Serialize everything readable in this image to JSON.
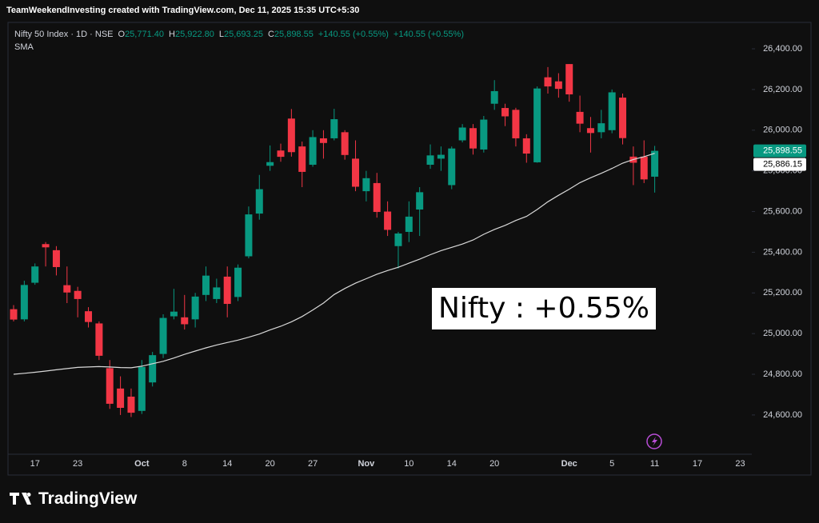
{
  "header": "TeamWeekendInvesting created with TradingView.com, Dec 11, 2025 15:35 UTC+5:30",
  "brand": "TradingView",
  "chart_data": {
    "type": "candlestick",
    "legend": {
      "symbol": "Nifty 50 Index · 1D · NSE",
      "ohlc": [
        {
          "key": "O",
          "value": "25,771.40"
        },
        {
          "key": "H",
          "value": "25,922.80"
        },
        {
          "key": "L",
          "value": "25,693.25"
        },
        {
          "key": "C",
          "value": "25,898.55"
        }
      ],
      "change": [
        "+140.55 (+0.55%)",
        "+140.55 (+0.55%)"
      ],
      "indicator": "SMA"
    },
    "annotation": "Nifty : +0.55%",
    "up_color": "#089981",
    "down_color": "#f23645",
    "sma_color": "#d9d9d9",
    "categories": [
      null,
      null,
      "17",
      null,
      null,
      null,
      "23",
      null,
      null,
      null,
      null,
      null,
      "Oct",
      null,
      null,
      null,
      "8",
      null,
      null,
      null,
      "14",
      null,
      null,
      null,
      "20",
      null,
      null,
      null,
      "27",
      null,
      null,
      null,
      null,
      "Nov",
      null,
      null,
      null,
      "10",
      null,
      null,
      null,
      "14",
      null,
      null,
      null,
      "20",
      null,
      null,
      null,
      null,
      null,
      null,
      "Dec",
      null,
      null,
      null,
      "5",
      null,
      null,
      null,
      "11",
      null,
      null,
      null,
      "17",
      null,
      null,
      null,
      "23"
    ],
    "open": [
      25120,
      25070,
      25250,
      25440,
      25410,
      25238,
      25210,
      25110,
      25050,
      24830,
      24730,
      24690,
      24620,
      24760,
      24900,
      25085,
      25080,
      25070,
      25190,
      25170,
      25280,
      25180,
      25380,
      25590,
      25825,
      25900,
      26057,
      25920,
      25830,
      25960,
      25960,
      25990,
      25860,
      25700,
      25740,
      25600,
      25430,
      25500,
      25610,
      25830,
      25860,
      25730,
      25950,
      26010,
      25905,
      26130,
      26109,
      26100,
      25960,
      25842,
      26260,
      26240,
      26325,
      26090,
      26010,
      25990,
      26000,
      26160,
      25870,
      25870,
      25771.4,
      null,
      null,
      null,
      null,
      null,
      null,
      null,
      null
    ],
    "high": [
      25140,
      25260,
      25345,
      25450,
      25430,
      25330,
      25230,
      25130,
      25060,
      24870,
      24790,
      24730,
      24870,
      24910,
      25095,
      25220,
      25190,
      25200,
      25330,
      25270,
      25330,
      25340,
      25625,
      25780,
      25925,
      25934,
      26104,
      25944,
      26000,
      26000,
      26105,
      26000,
      25950,
      25800,
      25790,
      25650,
      25500,
      25650,
      25720,
      25930,
      25920,
      25920,
      26030,
      26030,
      26070,
      26246,
      26130,
      26110,
      25980,
      26215,
      26310,
      26280,
      26325,
      26170,
      26065,
      26100,
      26200,
      26180,
      25920,
      25950,
      25922.8,
      null,
      null,
      null,
      null,
      null,
      null,
      null,
      null
    ],
    "low": [
      25060,
      25060,
      25240,
      25330,
      25286,
      25150,
      25080,
      25030,
      24870,
      24630,
      24600,
      24590,
      24605,
      24740,
      24880,
      25070,
      25020,
      25030,
      25160,
      25150,
      25080,
      25160,
      25370,
      25560,
      25800,
      25845,
      25870,
      25720,
      25820,
      25860,
      25950,
      25855,
      25700,
      25650,
      25570,
      25480,
      25320,
      25450,
      25480,
      25810,
      25800,
      25710,
      25940,
      25880,
      25890,
      26100,
      26020,
      25920,
      25840,
      25840,
      26180,
      26160,
      26140,
      25990,
      25890,
      25960,
      25985,
      25930,
      25730,
      25740,
      25693.25,
      null,
      null,
      null,
      null,
      null,
      null,
      null,
      null
    ],
    "close": [
      25069,
      25239,
      25330,
      25424,
      25327,
      25202,
      25170,
      25057,
      24891,
      24655,
      24635,
      24611,
      24836,
      24894,
      25077,
      25108,
      25046,
      25182,
      25285,
      25227,
      25146,
      25324,
      25586,
      25710,
      25843,
      25869,
      25892,
      25795,
      25966,
      25937,
      26054,
      25878,
      25722,
      25764,
      25598,
      25510,
      25492,
      25575,
      25695,
      25876,
      25879,
      25910,
      26013,
      25910,
      26052,
      26192,
      26068,
      25960,
      25885,
      26205,
      26215,
      26203,
      26176,
      26032,
      25986,
      26034,
      26186,
      25961,
      25840,
      25758,
      25898.55,
      null,
      null,
      null,
      null,
      null,
      null,
      null,
      null
    ],
    "sma": [
      24800,
      24805,
      24810,
      24816,
      24822,
      24828,
      24834,
      24836,
      24838,
      24836,
      24833,
      24832,
      24840,
      24852,
      24864,
      24880,
      24898,
      24914,
      24930,
      24944,
      24956,
      24968,
      24982,
      24998,
      25018,
      25036,
      25058,
      25084,
      25116,
      25150,
      25192,
      25222,
      25248,
      25270,
      25292,
      25310,
      25326,
      25346,
      25366,
      25388,
      25408,
      25424,
      25440,
      25460,
      25488,
      25512,
      25532,
      25556,
      25576,
      25610,
      25648,
      25680,
      25710,
      25742,
      25766,
      25788,
      25812,
      25838,
      25856,
      25870,
      25886.15,
      null,
      null,
      null,
      null,
      null,
      null,
      null,
      null
    ],
    "price_tags": {
      "close": "25,898.55",
      "sma": "25,886.15"
    },
    "ylim": [
      24407,
      26522
    ],
    "yticks": [
      {
        "value": 24600,
        "label": "24,600.00"
      },
      {
        "value": 24800,
        "label": "24,800.00"
      },
      {
        "value": 25000,
        "label": "25,000.00"
      },
      {
        "value": 25200,
        "label": "25,200.00"
      },
      {
        "value": 25400,
        "label": "25,400.00"
      },
      {
        "value": 25600,
        "label": "25,600.00"
      },
      {
        "value": 25800,
        "label": "25,800.00"
      },
      {
        "value": 26000,
        "label": "26,000.00"
      },
      {
        "value": 26200,
        "label": "26,200.00"
      },
      {
        "value": 26400,
        "label": "26,400.00"
      }
    ]
  }
}
